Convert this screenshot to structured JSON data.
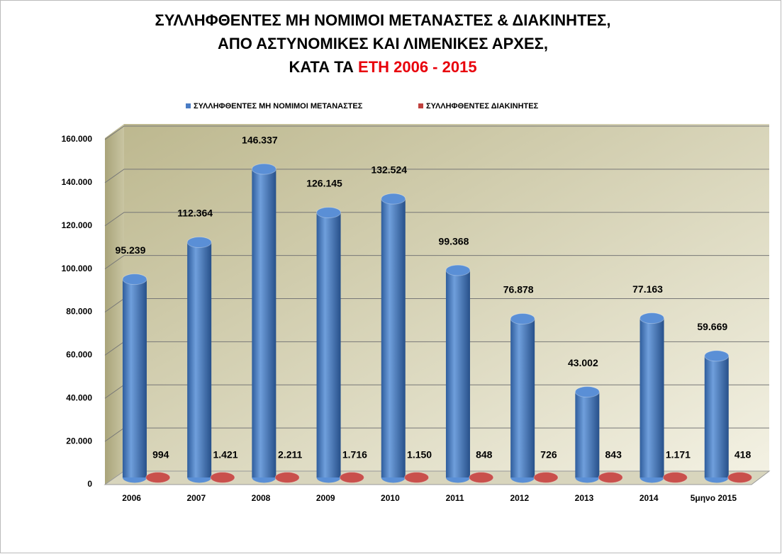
{
  "chart_data": {
    "type": "bar3d",
    "title": [
      "ΣΥΛΛΗΦΘΕΝΤΕΣ ΜΗ ΝΟΜΙΜΟΙ ΜΕΤΑΝΑΣΤΕΣ & ΔΙΑΚΙΝΗΤΕΣ,",
      "ΑΠΟ ΑΣΤΥΝΟΜΙΚΕΣ ΚΑΙ ΛΙΜΕΝΙΚΕΣ ΑΡΧΕΣ,",
      "ΚΑΤΑ ΤΑ"
    ],
    "title_highlight": "ΕΤΗ 2006 - 2015",
    "categories": [
      "2006",
      "2007",
      "2008",
      "2009",
      "2010",
      "2011",
      "2012",
      "2013",
      "2014",
      "5μηνο 2015"
    ],
    "series": [
      {
        "name": "ΣΥΛΛΗΦΘΕΝΤΕΣ ΜΗ ΝΟΜΙΜΟΙ ΜΕΤΑΝΑΣΤΕΣ",
        "color": "#4a7cc4",
        "values": [
          95239,
          112364,
          146337,
          126145,
          132524,
          99368,
          76878,
          43002,
          77163,
          59669
        ],
        "value_labels": [
          "95.239",
          "112.364",
          "146.337",
          "126.145",
          "132.524",
          "99.368",
          "76.878",
          "43.002",
          "77.163",
          "59.669"
        ]
      },
      {
        "name": "ΣΥΛΛΗΦΘΕΝΤΕΣ ΔΙΑΚΙΝΗΤΕΣ",
        "color": "#c0413e",
        "values": [
          994,
          1421,
          2211,
          1716,
          1150,
          848,
          726,
          843,
          1171,
          418
        ],
        "value_labels": [
          "994",
          "1.421",
          "2.211",
          "1.716",
          "1.150",
          "848",
          "726",
          "843",
          "1.171",
          "418"
        ]
      }
    ],
    "ylim": [
      0,
      160000
    ],
    "yticks": [
      0,
      {
        "value": 20000,
        "label": "20.000"
      },
      {
        "value": 40000,
        "label": "40.000"
      },
      {
        "value": 60000,
        "label": "60.000"
      },
      {
        "value": 80000,
        "label": "80.000"
      },
      {
        "value": 100000,
        "label": "100.000"
      },
      {
        "value": 120000,
        "label": "120.000"
      },
      {
        "value": 140000,
        "label": "140.000"
      },
      {
        "value": 160000,
        "label": "160.000"
      }
    ],
    "grid": true,
    "legend": "top"
  }
}
